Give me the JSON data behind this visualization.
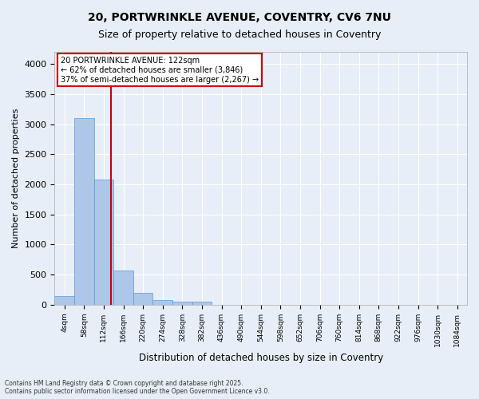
{
  "title": "20, PORTWRINKLE AVENUE, COVENTRY, CV6 7NU",
  "subtitle": "Size of property relative to detached houses in Coventry",
  "xlabel": "Distribution of detached houses by size in Coventry",
  "ylabel": "Number of detached properties",
  "footer_line1": "Contains HM Land Registry data © Crown copyright and database right 2025.",
  "footer_line2": "Contains public sector information licensed under the Open Government Licence v3.0.",
  "bin_labels": [
    "4sqm",
    "58sqm",
    "112sqm",
    "166sqm",
    "220sqm",
    "274sqm",
    "328sqm",
    "382sqm",
    "436sqm",
    "490sqm",
    "544sqm",
    "598sqm",
    "652sqm",
    "706sqm",
    "760sqm",
    "814sqm",
    "868sqm",
    "922sqm",
    "976sqm",
    "1030sqm",
    "1084sqm"
  ],
  "bar_values": [
    140,
    3100,
    2080,
    570,
    200,
    75,
    55,
    45,
    0,
    0,
    0,
    0,
    0,
    0,
    0,
    0,
    0,
    0,
    0,
    0,
    0
  ],
  "bar_color": "#aec6e8",
  "bar_edge_color": "#5b9bd5",
  "background_color": "#e8eef7",
  "grid_color": "#ffffff",
  "vline_x": 2.37,
  "vline_color": "#cc0000",
  "annotation_text": "20 PORTWRINKLE AVENUE: 122sqm\n← 62% of detached houses are smaller (3,846)\n37% of semi-detached houses are larger (2,267) →",
  "annotation_box_color": "#ffffff",
  "annotation_box_edge": "#cc0000",
  "ylim": [
    0,
    4200
  ],
  "yticks": [
    0,
    500,
    1000,
    1500,
    2000,
    2500,
    3000,
    3500,
    4000
  ]
}
